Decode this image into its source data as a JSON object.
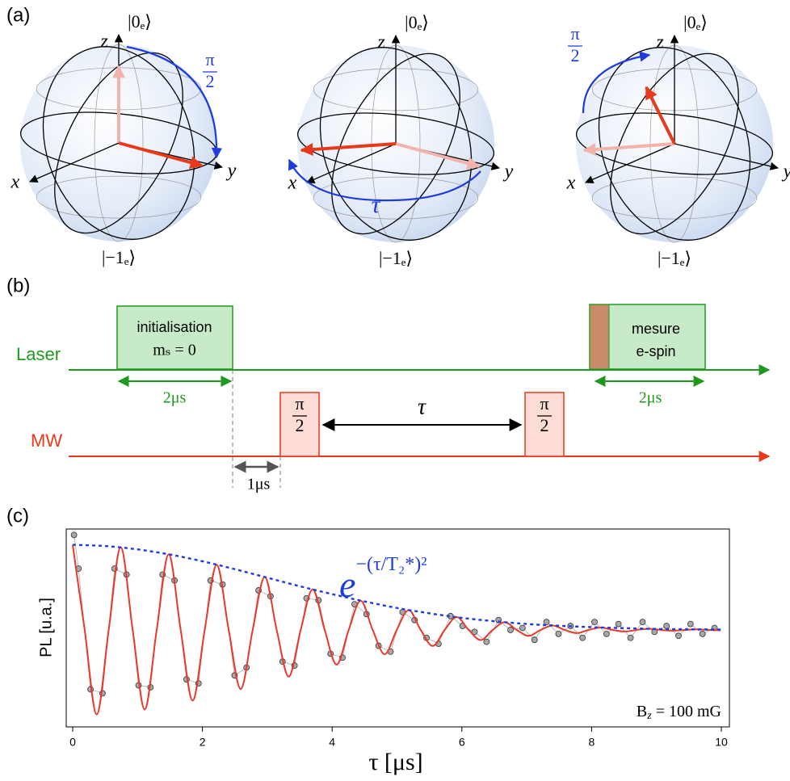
{
  "panels": {
    "a": "(a)",
    "b": "(b)",
    "c": "(c)"
  },
  "bloch": {
    "spheres": [
      {
        "top": "|0ₑ⟩",
        "bottom": "|−1ₑ⟩",
        "x": "x",
        "y": "y",
        "z": "z",
        "rotation": {
          "num": "π",
          "den": "2"
        }
      },
      {
        "top": "|0ₑ⟩",
        "bottom": "|−1ₑ⟩",
        "x": "x",
        "y": "y",
        "z": "z",
        "rotation": "τ"
      },
      {
        "top": "|0ₑ⟩",
        "bottom": "|−1ₑ⟩",
        "x": "x",
        "y": "y",
        "z": "z",
        "rotation": {
          "num": "π",
          "den": "2"
        }
      }
    ]
  },
  "sequence": {
    "laser": "Laser",
    "mw": "MW",
    "init": [
      "initialisation",
      "mₛ = 0"
    ],
    "measure": [
      "mesure",
      "e-spin"
    ],
    "laser_duration": [
      "2μs",
      "2μs"
    ],
    "pulse": [
      {
        "num": "π",
        "den": "2"
      },
      {
        "num": "π",
        "den": "2"
      }
    ],
    "delay": "τ",
    "gap": "1μs"
  },
  "chart_data": {
    "type": "line",
    "xlabel": "τ [μs]",
    "ylabel": "PL [u.a.]",
    "xlim": [
      0,
      10
    ],
    "ylim": [
      0,
      1
    ],
    "xticks": [
      0,
      2,
      4,
      6,
      8,
      10
    ],
    "annotations": [
      {
        "base": "e",
        "exponent": "−(τ/T₂*)²"
      },
      {
        "text": "B",
        "sub": "z",
        "rest": " = 100 mG"
      }
    ],
    "series": [
      {
        "style": "points",
        "color": "#a8a8a8",
        "x": [
          0.02,
          0.09,
          0.275,
          0.46,
          0.645,
          0.83,
          1.015,
          1.2,
          1.385,
          1.57,
          1.755,
          1.94,
          2.125,
          2.31,
          2.495,
          2.68,
          2.865,
          3.05,
          3.235,
          3.42,
          3.605,
          3.79,
          3.975,
          4.16,
          4.345,
          4.53,
          4.715,
          4.9,
          5.085,
          5.27,
          5.455,
          5.64,
          5.825,
          6.01,
          6.195,
          6.38,
          6.565,
          6.75,
          6.935,
          7.12,
          7.305,
          7.49,
          7.675,
          7.86,
          8.045,
          8.23,
          8.415,
          8.6,
          8.785,
          8.97,
          9.155,
          9.34,
          9.525,
          9.71,
          9.895
        ],
        "values": [
          0.97,
          0.8,
          0.19,
          0.17,
          0.8,
          0.77,
          0.21,
          0.2,
          0.77,
          0.74,
          0.24,
          0.22,
          0.74,
          0.72,
          0.26,
          0.3,
          0.69,
          0.66,
          0.33,
          0.31,
          0.65,
          0.64,
          0.37,
          0.35,
          0.62,
          0.57,
          0.41,
          0.38,
          0.58,
          0.54,
          0.45,
          0.42,
          0.56,
          0.51,
          0.48,
          0.43,
          0.54,
          0.49,
          0.5,
          0.44,
          0.53,
          0.47,
          0.51,
          0.45,
          0.53,
          0.47,
          0.52,
          0.45,
          0.53,
          0.48,
          0.51,
          0.46,
          0.52,
          0.47,
          0.5
        ]
      },
      {
        "style": "line",
        "color": "#e8392b",
        "x": [
          0,
          0.185,
          0.37,
          0.555,
          0.74,
          0.925,
          1.11,
          1.295,
          1.48,
          1.665,
          1.85,
          2.035,
          2.22,
          2.405,
          2.59,
          2.775,
          2.96,
          3.145,
          3.33,
          3.515,
          3.7,
          3.885,
          4.07,
          4.255,
          4.44,
          4.625,
          4.81,
          4.995,
          5.18,
          5.365,
          5.55,
          5.735,
          5.92,
          6.105,
          6.29,
          6.475,
          6.66,
          6.845,
          7.03,
          7.215,
          7.4,
          7.585,
          7.77,
          7.955,
          8.14,
          8.325,
          8.51,
          8.695,
          8.88,
          9.065,
          9.25,
          9.435,
          9.62,
          9.805,
          9.99
        ],
        "values": [
          0.92,
          0.49,
          0.063,
          0.49,
          0.908,
          0.49,
          0.088,
          0.49,
          0.872,
          0.49,
          0.133,
          0.49,
          0.819,
          0.49,
          0.191,
          0.49,
          0.758,
          0.49,
          0.254,
          0.49,
          0.695,
          0.49,
          0.315,
          0.49,
          0.638,
          0.49,
          0.367,
          0.49,
          0.59,
          0.49,
          0.409,
          0.49,
          0.555,
          0.49,
          0.439,
          0.49,
          0.529,
          0.49,
          0.46,
          0.49,
          0.512,
          0.49,
          0.474,
          0.49,
          0.502,
          0.49,
          0.482,
          0.49,
          0.496,
          0.49,
          0.486,
          0.49,
          0.493,
          0.49,
          0.488
        ]
      },
      {
        "style": "dashed",
        "color": "#1f3be0",
        "x": [
          0,
          0.5,
          1,
          1.5,
          2,
          2.5,
          3,
          3.5,
          4,
          4.5,
          5,
          5.5,
          6,
          6.5,
          7,
          7.5,
          8,
          8.5,
          9,
          9.5,
          10
        ],
        "values": [
          0.92,
          0.914,
          0.897,
          0.871,
          0.837,
          0.797,
          0.754,
          0.711,
          0.671,
          0.634,
          0.601,
          0.574,
          0.551,
          0.534,
          0.52,
          0.511,
          0.504,
          0.499,
          0.495,
          0.493,
          0.492
        ]
      }
    ]
  }
}
